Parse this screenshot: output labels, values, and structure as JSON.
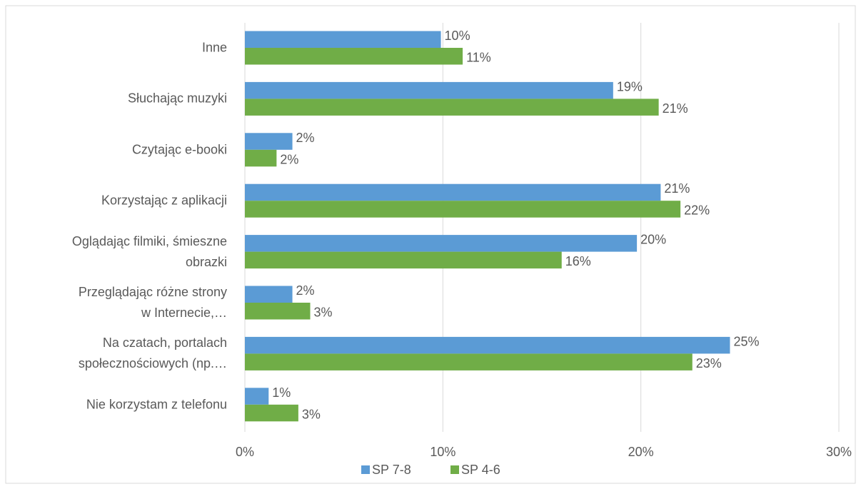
{
  "chart_data": {
    "type": "hbar",
    "categories": [
      "Inne",
      "Słuchając muzyki",
      "Czytając e-booki",
      "Korzystając z aplikacji",
      "Oglądając filmiki, śmieszne\nobrazki",
      "Przeglądając różne strony\nw Internecie,…",
      "Na czatach, portalach\nspołecznościowych (np.…",
      "Nie korzystam z telefonu"
    ],
    "series": [
      {
        "name": "SP 7-8",
        "color": "#5b9bd5",
        "values": [
          9.9,
          18.6,
          2.4,
          21.0,
          19.8,
          2.4,
          24.5,
          1.2
        ],
        "value_labels": [
          "10%",
          "19%",
          "2%",
          "21%",
          "20%",
          "2%",
          "25%",
          "1%"
        ]
      },
      {
        "name": "SP 4-6",
        "color": "#70ad47",
        "values": [
          11.0,
          20.9,
          1.6,
          22.0,
          16.0,
          3.3,
          22.6,
          2.7
        ],
        "value_labels": [
          "11%",
          "21%",
          "2%",
          "22%",
          "16%",
          "3%",
          "23%",
          "3%"
        ]
      }
    ],
    "xlim": [
      0,
      30
    ],
    "xticks": [
      {
        "value": 0,
        "label": "0%"
      },
      {
        "value": 10,
        "label": "10%"
      },
      {
        "value": 20,
        "label": "20%"
      },
      {
        "value": 30,
        "label": "30%"
      }
    ],
    "grid": true,
    "legend": "bottom"
  }
}
